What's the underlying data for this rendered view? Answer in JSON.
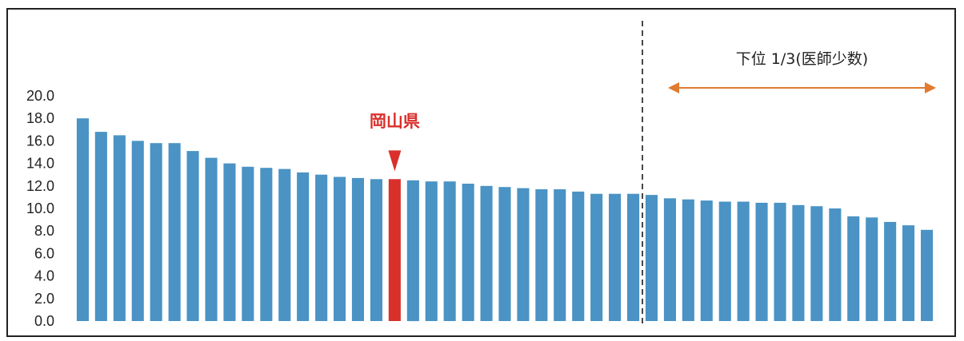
{
  "chart_data": {
    "type": "bar",
    "title": "",
    "xlabel": "",
    "ylabel": "",
    "ylim": [
      0,
      20
    ],
    "yticks": [
      "0.0",
      "2.0",
      "4.0",
      "6.0",
      "8.0",
      "10.0",
      "12.0",
      "14.0",
      "16.0",
      "18.0",
      "20.0"
    ],
    "grid": false,
    "legend": "none",
    "values": [
      18.0,
      16.8,
      16.5,
      16.0,
      15.8,
      15.8,
      15.1,
      14.5,
      14.0,
      13.7,
      13.6,
      13.5,
      13.2,
      13.0,
      12.8,
      12.7,
      12.6,
      12.6,
      12.5,
      12.4,
      12.4,
      12.2,
      12.0,
      11.9,
      11.8,
      11.7,
      11.7,
      11.5,
      11.3,
      11.3,
      11.3,
      11.2,
      10.9,
      10.8,
      10.7,
      10.6,
      10.6,
      10.5,
      10.5,
      10.3,
      10.2,
      10.0,
      9.3,
      9.2,
      8.8,
      8.5,
      8.1
    ],
    "highlight_index": 17,
    "highlight_label": "岡山県",
    "divider_after_index": 30,
    "bracket_label": "下位 1/3(医師少数)",
    "colors": {
      "bar": "#4a93c4",
      "highlight": "#d9302c",
      "bracket": "#e07b2f",
      "divider": "#333333"
    }
  }
}
